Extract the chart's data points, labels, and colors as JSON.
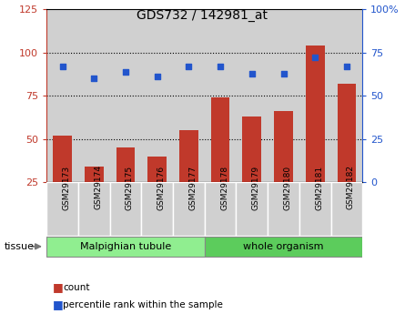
{
  "title": "GDS732 / 142981_at",
  "categories": [
    "GSM29173",
    "GSM29174",
    "GSM29175",
    "GSM29176",
    "GSM29177",
    "GSM29178",
    "GSM29179",
    "GSM29180",
    "GSM29181",
    "GSM29182"
  ],
  "bar_values": [
    52,
    34,
    45,
    40,
    55,
    74,
    63,
    66,
    104,
    82
  ],
  "scatter_values": [
    67,
    60,
    64,
    61,
    67,
    67,
    63,
    63,
    72,
    67
  ],
  "bar_color": "#c0392b",
  "scatter_color": "#2255cc",
  "left_ylim": [
    25,
    125
  ],
  "left_yticks": [
    25,
    50,
    75,
    100,
    125
  ],
  "right_ylim": [
    0,
    100
  ],
  "right_yticks": [
    0,
    25,
    50,
    75,
    100
  ],
  "right_yticklabels": [
    "0",
    "25",
    "50",
    "75",
    "100%"
  ],
  "hlines": [
    50,
    75,
    100
  ],
  "tissue_groups": [
    {
      "label": "Malpighian tubule",
      "start": 0,
      "end": 5,
      "color": "#90ee90"
    },
    {
      "label": "whole organism",
      "start": 5,
      "end": 10,
      "color": "#5ccc5c"
    }
  ],
  "tissue_label": "tissue",
  "legend_items": [
    {
      "label": "count",
      "color": "#c0392b"
    },
    {
      "label": "percentile rank within the sample",
      "color": "#2255cc"
    }
  ],
  "bar_width": 0.6,
  "col_bg_color": "#d0d0d0",
  "grid_color": "black",
  "bg_color": "#ffffff"
}
